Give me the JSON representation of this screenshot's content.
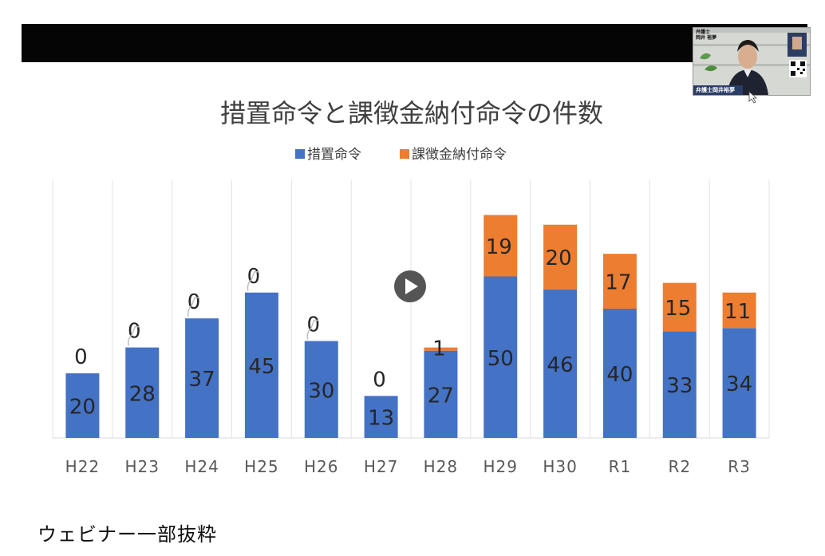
{
  "webinar": {
    "caption": "ウェビナー一部抜粋",
    "speaker_overlay": {
      "top_label": "弁護士\n岡井 裕夢",
      "name_tag": "弁護士岡井裕夢"
    }
  },
  "chart_data": {
    "type": "bar",
    "stacked": true,
    "title": "措置命令と課徴金納付命令の件数",
    "categories": [
      "H22",
      "H23",
      "H24",
      "H25",
      "H26",
      "H27",
      "H28",
      "H29",
      "H30",
      "R1",
      "R2",
      "R3"
    ],
    "series": [
      {
        "name": "措置命令",
        "color": "#4472c4",
        "values": [
          20,
          28,
          37,
          45,
          30,
          13,
          27,
          50,
          46,
          40,
          33,
          34
        ]
      },
      {
        "name": "課徴金納付命令",
        "color": "#ed7d31",
        "values": [
          0,
          0,
          0,
          0,
          0,
          0,
          1,
          19,
          20,
          17,
          15,
          11
        ]
      }
    ],
    "ylim": [
      0,
      72
    ],
    "legend": "top",
    "grid": "vertical"
  },
  "colors": {
    "play_button": "#555555",
    "top_bar": "#050505"
  },
  "icons": {
    "play": "play-icon",
    "cursor": "cursor-icon",
    "qr": "qr-code-icon"
  }
}
